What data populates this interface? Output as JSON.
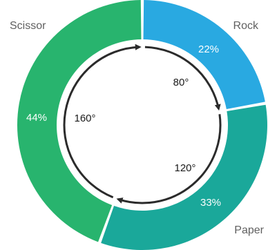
{
  "chart_data": {
    "type": "pie",
    "style": "donut",
    "slices": [
      {
        "name": "Rock",
        "value": 22,
        "value_label": "22%",
        "color": "#29a9e1"
      },
      {
        "name": "Paper",
        "value": 33,
        "value_label": "33%",
        "color": "#1aa89a"
      },
      {
        "name": "Scissor",
        "value": 44,
        "value_label": "44%",
        "color": "#28b46e"
      }
    ],
    "angles": [
      {
        "value": 80,
        "label": "80°"
      },
      {
        "value": 120,
        "label": "120°"
      },
      {
        "value": 160,
        "label": "160°"
      }
    ],
    "arrow_color": "#2b2b2b"
  }
}
